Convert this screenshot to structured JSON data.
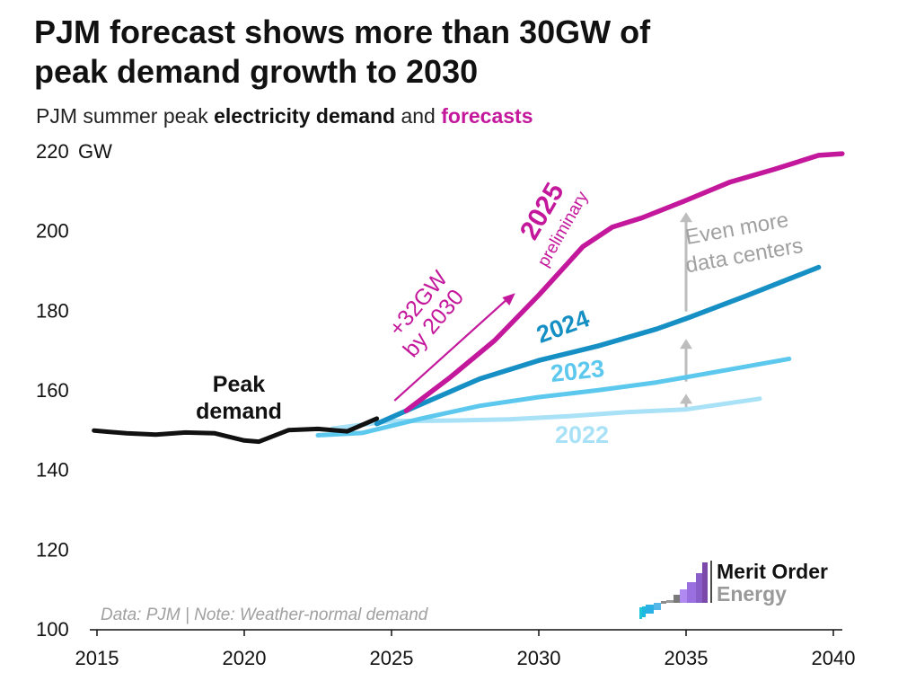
{
  "title_line1": "PJM forecast shows more than 30GW of",
  "title_line2": "peak demand growth to 2030",
  "subtitle": {
    "part1": "PJM summer peak ",
    "part2": "electricity demand",
    "part3": " and ",
    "part4": "forecasts"
  },
  "unit_label": "GW",
  "source_note": "Data: PJM | Note: Weather-normal demand",
  "logo": {
    "line1": "Merit Order",
    "line2": "Energy"
  },
  "colors": {
    "actual": "#111111",
    "f2025": "#c4189c",
    "f2024": "#1690c4",
    "f2023": "#5cc8ee",
    "f2022": "#a9e1f6",
    "arrow": "#bdbdbd",
    "note": "#a0a0a0"
  },
  "chart_data": {
    "type": "line",
    "title": "PJM forecast shows more than 30GW of peak demand growth to 2030",
    "subtitle": "PJM summer peak electricity demand and forecasts",
    "ylabel": "GW",
    "xlim": [
      2015,
      2040
    ],
    "ylim": [
      100,
      220
    ],
    "x_ticks": [
      "2015",
      "2020",
      "2025",
      "2030",
      "2035",
      "2040"
    ],
    "y_ticks": [
      "100",
      "120",
      "140",
      "160",
      "180",
      "200",
      "220"
    ],
    "series": [
      {
        "name": "Peak demand",
        "label_line1": "Peak",
        "label_line2": "demand",
        "color": "#111111",
        "x": [
          2014.9,
          2016.0,
          2017.0,
          2018.0,
          2019.0,
          2020.0,
          2020.5,
          2021.5,
          2022.5,
          2023.5,
          2024.5
        ],
        "y": [
          149.8,
          149.1,
          148.8,
          149.3,
          149.1,
          147.3,
          147.0,
          149.9,
          150.2,
          149.6,
          152.8
        ]
      },
      {
        "name": "2022",
        "label": "2022",
        "color": "#a9e1f6",
        "x": [
          2023.0,
          2025.0,
          2027.0,
          2029.0,
          2031.0,
          2033.0,
          2035.0,
          2037.5
        ],
        "y": [
          150.3,
          152.2,
          152.3,
          152.6,
          153.4,
          154.4,
          155.1,
          157.8
        ]
      },
      {
        "name": "2023",
        "label": "2023",
        "color": "#5cc8ee",
        "x": [
          2022.5,
          2024.0,
          2026.0,
          2028.0,
          2030.0,
          2032.0,
          2034.0,
          2036.0,
          2038.5
        ],
        "y": [
          148.6,
          149.2,
          152.8,
          156.0,
          158.2,
          159.9,
          161.9,
          164.5,
          167.8
        ]
      },
      {
        "name": "2024",
        "label": "2024",
        "color": "#1690c4",
        "x": [
          2024.5,
          2026.0,
          2028.0,
          2030.0,
          2032.0,
          2034.0,
          2035.0,
          2037.0,
          2039.5
        ],
        "y": [
          151.5,
          156.4,
          162.8,
          167.4,
          171.0,
          175.3,
          177.9,
          183.5,
          190.8
        ]
      },
      {
        "name": "2025 preliminary",
        "label": "2025",
        "label_sub": "preliminary",
        "color": "#c4189c",
        "x": [
          2025.5,
          2027.0,
          2028.5,
          2030.0,
          2031.5,
          2032.5,
          2033.5,
          2035.0,
          2036.5,
          2038.0,
          2039.5,
          2040.3
        ],
        "y": [
          154.8,
          163.2,
          172.4,
          183.8,
          196.0,
          200.9,
          203.2,
          207.6,
          212.2,
          215.4,
          218.9,
          219.3
        ]
      }
    ],
    "annotations": {
      "growth_line1": "+32GW",
      "growth_line2": "by 2030",
      "more_dc_line1": "Even more",
      "more_dc_line2": "data centers"
    }
  }
}
